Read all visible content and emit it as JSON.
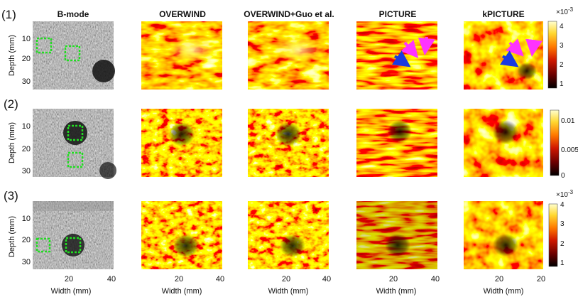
{
  "figure": {
    "column_titles": [
      "B-mode",
      "OVERWIND",
      "OVERWIND+Guo et al.",
      "PICTURE",
      "kPICTURE"
    ],
    "row_labels": [
      "(1)",
      "(2)",
      "(3)"
    ],
    "y_axis_label": "Depth (mm)",
    "y_ticks": [
      "10",
      "20",
      "30"
    ],
    "x_axis_label": "Width (mm)",
    "x_ticks_col1": [
      "20",
      "40"
    ],
    "x_ticks_col2": [
      "20",
      "40"
    ],
    "x_ticks_col3": [
      "20",
      "40"
    ],
    "x_ticks_col4": [
      "20",
      "40"
    ],
    "x_ticks_col5": [
      "20",
      "20"
    ],
    "colorbars": [
      {
        "row": "(1)",
        "exponent": "×10",
        "exponent_power": "-3",
        "ticks": [
          "4",
          "3",
          "2",
          "1"
        ]
      },
      {
        "row": "(2)",
        "exponent": "",
        "exponent_power": "",
        "ticks": [
          "0.01",
          "0.005",
          "0"
        ]
      },
      {
        "row": "(3)",
        "exponent": "×10",
        "exponent_power": "-3",
        "ticks": [
          "4",
          "3",
          "2",
          "1"
        ]
      }
    ],
    "colors": {
      "speckle_bg": "#4a4a4a",
      "roi_marker": "#22dd22",
      "arrow_magenta": "#ff33ff",
      "arrow_blue": "#1a3ae0",
      "colormap_hot": [
        "#000000",
        "#6a0000",
        "#d01800",
        "#ff7a00",
        "#ffd830",
        "#ffffc8"
      ]
    }
  }
}
